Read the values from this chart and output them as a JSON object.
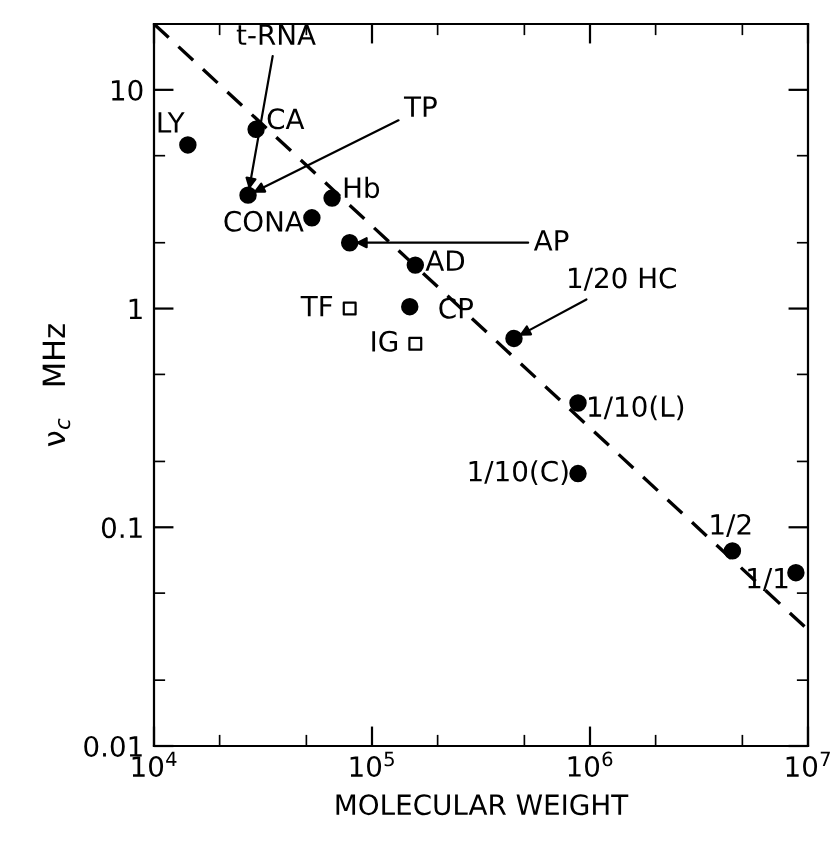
{
  "chart_data": {
    "type": "scatter",
    "xlabel": "MOLECULAR WEIGHT",
    "ylabel": "ν$_{c}$   MHz",
    "log": "xy",
    "grid": false,
    "legend": false,
    "xlim": [
      10000,
      10000000
    ],
    "ylim": [
      0.01,
      20
    ],
    "xticks": [
      {
        "value": 10000,
        "label": "10$^{4}$"
      },
      {
        "value": 100000,
        "label": "10$^{5}$"
      },
      {
        "value": 1000000,
        "label": "10$^{6}$"
      },
      {
        "value": 10000000,
        "label": "10$^{7}$"
      }
    ],
    "yticks": [
      0.01,
      0.1,
      1,
      10
    ],
    "series": [
      {
        "marker": "circle",
        "color": "#000000",
        "x": [
          14300,
          29400,
          27000,
          65600,
          53000,
          79000,
          158000,
          149000,
          448000,
          881000,
          881000,
          4500000,
          8800000
        ],
        "values": [
          5.6,
          6.6,
          3.3,
          3.2,
          2.6,
          2.0,
          1.58,
          1.02,
          0.73,
          0.37,
          0.176,
          0.078,
          0.062
        ]
      },
      {
        "marker": "square",
        "color": "#000000",
        "x": [
          79000,
          158000
        ],
        "values": [
          1.0,
          0.69
        ]
      },
      {
        "type": "line",
        "line_style": "dashed",
        "marker": "none",
        "color": "#000000",
        "x": [
          10000,
          10000000
        ],
        "values": [
          20,
          0.034
        ]
      }
    ],
    "annotations": [
      {
        "text": "t-RNA",
        "x": 27000,
        "y": 3.3
      },
      {
        "text": "CA",
        "x": 29400,
        "y": 6.6
      },
      {
        "text": "TP",
        "x": 27000,
        "y": 3.3
      },
      {
        "text": "LY",
        "x": 14300,
        "y": 5.6
      },
      {
        "text": "Hb",
        "x": 65600,
        "y": 3.2
      },
      {
        "text": "CONA",
        "x": 53000,
        "y": 2.6
      },
      {
        "text": "AP",
        "x": 79000,
        "y": 2.0
      },
      {
        "text": "AD",
        "x": 158000,
        "y": 1.58
      },
      {
        "text": "CP",
        "x": 149000,
        "y": 1.02
      },
      {
        "text": "TF",
        "x": 79000,
        "y": 1.0
      },
      {
        "text": "IG",
        "x": 158000,
        "y": 0.69
      },
      {
        "text": "1/20 HC",
        "x": 448000,
        "y": 0.73
      },
      {
        "text": "1/10(L)",
        "x": 881000,
        "y": 0.37
      },
      {
        "text": "1/10(C)",
        "x": 881000,
        "y": 0.176
      },
      {
        "text": "1/2",
        "x": 4500000,
        "y": 0.078
      },
      {
        "text": "1/1",
        "x": 8800000,
        "y": 0.062
      }
    ]
  }
}
